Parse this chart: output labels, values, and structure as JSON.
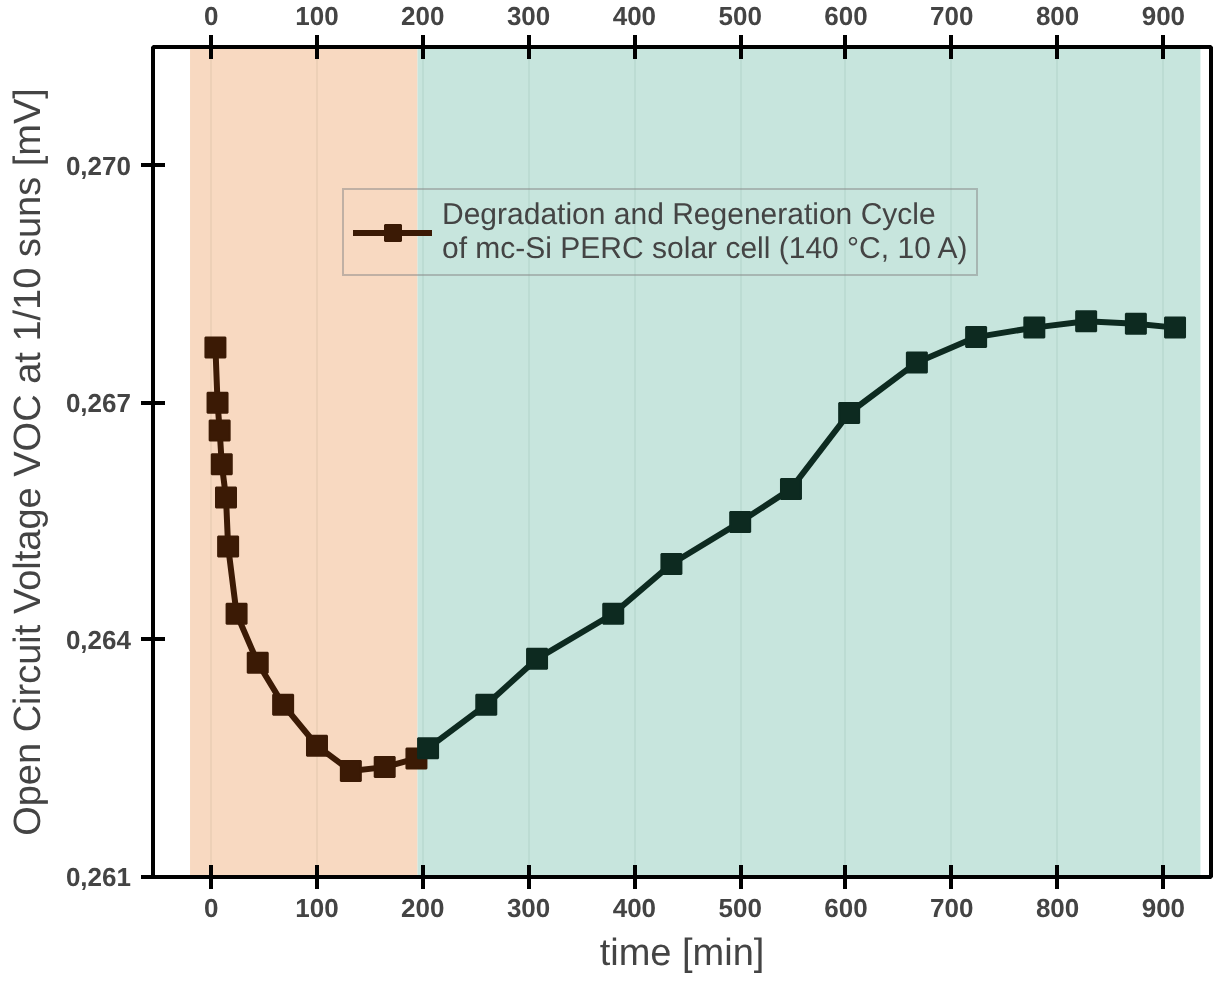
{
  "chart_data": {
    "type": "line",
    "xlabel": "time [min]",
    "ylabel": "Open Circuit Voltage VOC at 1/10 suns [mV]",
    "xlim": [
      -55,
      945
    ],
    "xticks": [
      0,
      100,
      200,
      300,
      400,
      500,
      600,
      700,
      800,
      900
    ],
    "x2lim": [
      -55,
      945
    ],
    "x2ticks": [
      0,
      100,
      200,
      300,
      400,
      500,
      600,
      700,
      800,
      900
    ],
    "ylim": [
      0.261,
      0.2715
    ],
    "yticks": [
      {
        "value": 0.261,
        "label": "0,261"
      },
      {
        "value": 0.264,
        "label": "0,264"
      },
      {
        "value": 0.267,
        "label": "0,267"
      },
      {
        "value": 0.27,
        "label": "0,270"
      }
    ],
    "grid": "x",
    "legend": "top right",
    "marker": "square",
    "line_style": "solid",
    "bands": [
      {
        "axis": "x",
        "from": -20,
        "to": 195,
        "color": "#f7d2b6"
      },
      {
        "axis": "x",
        "from": 195,
        "to": 935,
        "color": "#bde0d7"
      }
    ],
    "series": [
      {
        "name": "Degradation and Regeneration Cycle\nof mc-Si PERC solar cell (140 °C, 10 A)",
        "color": "#3b1a05",
        "x": [
          4,
          6,
          8,
          10,
          14,
          16,
          24,
          44,
          68,
          100,
          132,
          164,
          194
        ],
        "values": [
          0.2677,
          0.267,
          0.26665,
          0.26622,
          0.2658,
          0.26518,
          0.26433,
          0.26371,
          0.26318,
          0.26266,
          0.26234,
          0.26239,
          0.2625
        ]
      },
      {
        "color": "#0d2a20",
        "x": [
          205,
          260,
          308,
          380,
          435,
          500,
          548,
          603,
          667,
          723,
          778,
          827,
          874,
          911
        ],
        "values": [
          0.26263,
          0.26318,
          0.26376,
          0.26433,
          0.26496,
          0.26549,
          0.26591,
          0.26687,
          0.26751,
          0.26783,
          0.26795,
          0.26803,
          0.268,
          0.26795
        ]
      }
    ]
  }
}
